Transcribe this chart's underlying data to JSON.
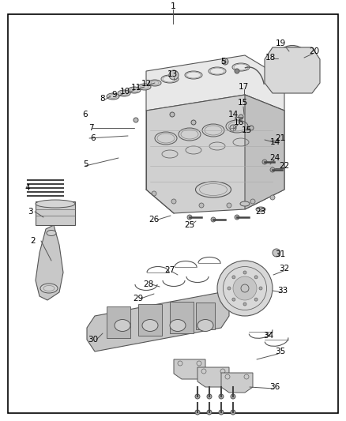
{
  "title": "1",
  "bg_color": "#ffffff",
  "border_color": "#000000",
  "text_color": "#000000",
  "line_color": "#555555",
  "part_numbers": [
    1,
    2,
    3,
    4,
    5,
    6,
    7,
    8,
    9,
    10,
    11,
    12,
    13,
    14,
    15,
    16,
    17,
    18,
    19,
    20,
    21,
    22,
    23,
    24,
    25,
    26,
    27,
    28,
    29,
    30,
    31,
    32,
    33,
    34,
    35,
    36
  ],
  "figsize": [
    4.38,
    5.33
  ],
  "dpi": 100
}
